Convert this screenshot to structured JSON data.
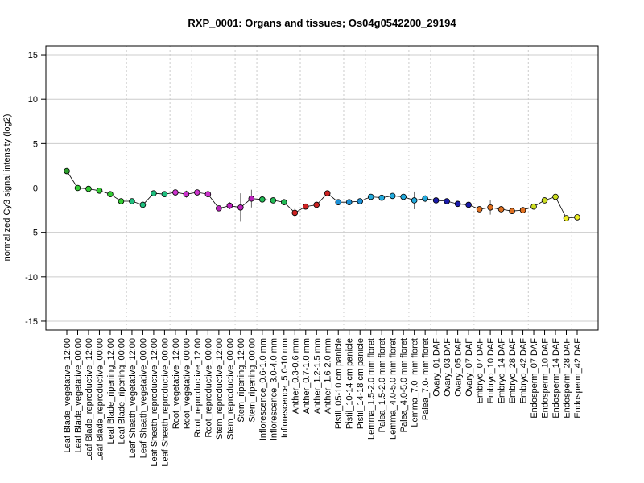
{
  "chart_data": {
    "type": "line",
    "title": "RXP_0001: Organs and tissues; Os04g0542200_29194",
    "xlabel": "",
    "ylabel": "normalized Cy3 signal intensity (log2)",
    "ylim": [
      -16,
      16
    ],
    "yticks": [
      -15,
      -10,
      -5,
      0,
      5,
      10,
      15
    ],
    "grid": "horizontal-solid, vertical-dotted-group-separators",
    "group_separators_after_index": [
      5,
      9,
      11,
      15,
      17,
      21,
      25,
      27,
      31,
      33,
      37,
      42,
      46
    ],
    "categories": [
      "Leaf Blade_vegetative_12:00",
      "Leaf Blade_vegetative_00:00",
      "Leaf Blade_reproductive_12:00",
      "Leaf Blade_reproductive_00:00",
      "Leaf Blade_ripening_12:00",
      "Leaf Blade_ripening_00:00",
      "Leaf Sheath_vegetative_12:00",
      "Leaf Sheath_vegetative_00:00",
      "Leaf Sheath_reproductive_12:00",
      "Leaf Sheath_reproductive_00:00",
      "Root_vegetative_12:00",
      "Root_vegetative_00:00",
      "Root_reproductive_12:00",
      "Root_reproductive_00:00",
      "Stem_reproductive_12:00",
      "Stem_reproductive_00:00",
      "Stem_ripening_12:00",
      "Stem_ripening_00:00",
      "Inflorescence_0.6-1.0 mm",
      "Inflorescence_3.0-4.0 mm",
      "Inflorescence_5.0-10 mm",
      "Anther_0.3-0.6 mm",
      "Anther_0.7-1.0 mm",
      "Anther_1.2-1.5 mm",
      "Anther_1.6-2.0 mm",
      "Pistil_05-10 cm panicle",
      "Pistil_10-14 cm panicle",
      "Pistil_14-18 cm panicle",
      "Lemma_1.5-2.0 mm floret",
      "Palea_1.5-2.0 mm floret",
      "Lemma_4.0-5.0 mm floret",
      "Palea_4.0-5.0 mm floret",
      "Lemma_7.0- mm floret",
      "Palea_7.0- mm floret",
      "Ovary_01 DAF",
      "Ovary_03 DAF",
      "Ovary_05 DAF",
      "Ovary_07 DAF",
      "Embryo_07 DAF",
      "Embryo_10 DAF",
      "Embryo_14 DAF",
      "Embryo_28 DAF",
      "Embryo_42 DAF",
      "Endosperm_07 DAF",
      "Endosperm_10 DAF",
      "Endosperm_14 DAF",
      "Endosperm_28 DAF",
      "Endosperm_42 DAF"
    ],
    "values": [
      1.9,
      0.0,
      -0.1,
      -0.3,
      -0.7,
      -1.5,
      -1.5,
      -1.9,
      -0.6,
      -0.7,
      -0.5,
      -0.7,
      -0.5,
      -0.7,
      -2.3,
      -2.0,
      -2.2,
      -1.2,
      -1.3,
      -1.4,
      -1.6,
      -2.8,
      -2.1,
      -1.9,
      -0.6,
      -1.6,
      -1.6,
      -1.5,
      -1.0,
      -1.1,
      -0.9,
      -1.0,
      -1.4,
      -1.2,
      -1.4,
      -1.5,
      -1.8,
      -1.9,
      -2.4,
      -2.2,
      -2.4,
      -2.6,
      -2.5,
      -2.1,
      -1.4,
      -1.0,
      -3.4,
      -3.3
    ],
    "errors": [
      0.2,
      0.3,
      0.2,
      0.1,
      0.3,
      0.3,
      0.3,
      0.3,
      0.1,
      0.3,
      0.3,
      0.4,
      0.3,
      0.3,
      0.2,
      0.4,
      1.6,
      1.0,
      0.2,
      0.2,
      0.3,
      0.5,
      0.3,
      0.3,
      0.3,
      0.3,
      0.2,
      0.2,
      0.2,
      0.2,
      0.2,
      0.2,
      1.0,
      0.4,
      0.2,
      0.2,
      0.2,
      0.2,
      0.2,
      0.8,
      0.2,
      0.2,
      0.2,
      0.2,
      0.3,
      0.2,
      0.3,
      0.3
    ],
    "colors": [
      "#2ca02c",
      "#33cc33",
      "#33cc33",
      "#33cc33",
      "#33cc33",
      "#33cc33",
      "#1fbf7f",
      "#1fbf7f",
      "#1fbf7f",
      "#1fbf7f",
      "#cc33cc",
      "#cc33cc",
      "#cc33cc",
      "#cc33cc",
      "#bb22bb",
      "#bb22bb",
      "#bb22bb",
      "#bb22bb",
      "#22bb55",
      "#22bb55",
      "#22bb55",
      "#cc2222",
      "#cc2222",
      "#cc2222",
      "#cc2222",
      "#1a8fd6",
      "#1a8fd6",
      "#1a8fd6",
      "#22aadd",
      "#22aadd",
      "#22aadd",
      "#22aadd",
      "#22aadd",
      "#22aadd",
      "#1a1aaa",
      "#1a1aaa",
      "#1a1aaa",
      "#1a1aaa",
      "#e07020",
      "#e07020",
      "#e07020",
      "#e07020",
      "#e07020",
      "#ccdd22",
      "#ccdd22",
      "#ccdd22",
      "#eeee22",
      "#eeee22"
    ]
  }
}
